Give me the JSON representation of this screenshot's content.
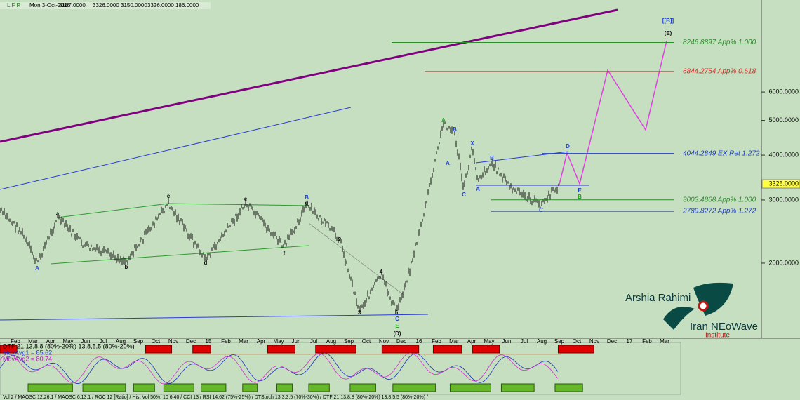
{
  "header": {
    "icons": "L F R",
    "items": [
      "Mon 3-Oct-2016",
      "3187.0000",
      "3326.0000",
      "3150.0000",
      "3326.0000",
      "186.0000"
    ]
  },
  "price_axis": {
    "scale": "log",
    "ylim": [
      1246,
      10830
    ],
    "yticks": [
      {
        "value": 2000,
        "label": "2000.0000"
      },
      {
        "value": 3000,
        "label": "3000.0000"
      },
      {
        "value": 4000,
        "label": "4000.0000"
      },
      {
        "value": 5000,
        "label": "5000.0000"
      },
      {
        "value": 6000,
        "label": "6000.0000"
      }
    ],
    "last_price": {
      "value": 3326,
      "label": "3326.0000"
    }
  },
  "levels": [
    {
      "value": 8246.8897,
      "label": "8246.8897 App% 1.000",
      "color": "#2e8b2e"
    },
    {
      "value": 6844.2754,
      "label": "6844.2754 App% 0.618",
      "color": "#d0302a"
    },
    {
      "value": 4044.2849,
      "label": "4044.2849 EX Ret 1.272",
      "color": "#2040c0"
    },
    {
      "value": 3003.4868,
      "label": "3003.4868 App% 1.000",
      "color": "#2e8b2e"
    },
    {
      "value": 2789.8272,
      "label": "2789.8272 App% 1.272",
      "color": "#2040c0"
    }
  ],
  "x_axis_labels": [
    "Feb",
    "Mar",
    "Apr",
    "May",
    "Jun",
    "Jul",
    "Aug",
    "Sep",
    "Oct",
    "Nov",
    "Dec",
    "15",
    "Feb",
    "Mar",
    "Apr",
    "May",
    "Jun",
    "Jul",
    "Aug",
    "Sep",
    "Oct",
    "Nov",
    "Dec",
    "16",
    "Feb",
    "Mar",
    "Apr",
    "May",
    "Jun",
    "Jul",
    "Aug",
    "Sep",
    "Oct",
    "Nov",
    "Dec",
    "17",
    "Feb",
    "Mar"
  ],
  "wave_labels": [
    {
      "text": "A",
      "color": "#1f3fd0"
    },
    {
      "text": "a",
      "color": "#111"
    },
    {
      "text": "b",
      "color": "#111"
    },
    {
      "text": "c",
      "color": "#111"
    },
    {
      "text": "d",
      "color": "#111"
    },
    {
      "text": "e",
      "color": "#111"
    },
    {
      "text": "f",
      "color": "#111"
    },
    {
      "text": "g",
      "color": "#111"
    },
    {
      "text": "B",
      "color": "#1f3fd0"
    },
    {
      "text": "2",
      "color": "#111"
    },
    {
      "text": "3",
      "color": "#111"
    },
    {
      "text": "4",
      "color": "#111"
    },
    {
      "text": "5",
      "color": "#111"
    },
    {
      "text": "C",
      "color": "#1f3fd0"
    },
    {
      "text": "E",
      "color": "#1a9a1a"
    },
    {
      "text": "(D)",
      "color": "#111"
    },
    {
      "text": "A",
      "color": "#1a9a1a"
    },
    {
      "text": "B",
      "color": "#1f3fd0"
    },
    {
      "text": "A",
      "color": "#1f3fd0"
    },
    {
      "text": "C",
      "color": "#1f3fd0"
    },
    {
      "text": "X",
      "color": "#1f3fd0"
    },
    {
      "text": "B",
      "color": "#1f3fd0"
    },
    {
      "text": "A",
      "color": "#1f3fd0"
    },
    {
      "text": "C",
      "color": "#1f3fd0"
    },
    {
      "text": "D",
      "color": "#1f3fd0"
    },
    {
      "text": "E",
      "color": "#1f3fd0"
    },
    {
      "text": "B",
      "color": "#1a9a1a"
    },
    {
      "text": "[[B]]",
      "color": "#1f3fd0"
    },
    {
      "text": "(E)",
      "color": "#111"
    }
  ],
  "indicator": {
    "title": "DTF 21,13,8,8 (80%-20%) 13,8,5,5 (80%-20%)",
    "ma1": "MovAvg1 = 85.62",
    "ma2": "MovAvg2 = 80.74"
  },
  "status_bar": "Vol 2 / MAOSC 12.26.1 / MAOSC 6.13.1 / ROC 12 [Ratio] / Hist Vol 50%, 10 6 40 / CCI 13 / RSI 14.62 (75%-25%) / DTStoch 13.3.3.5 (70%-30%) / DTF 21.13.8.8 (80%-20%) 13.8.5.5 (80%-20%) /",
  "logo": {
    "name": "Arshia Rahimi",
    "brand": "Iran NEoWave",
    "sub": "Institute"
  }
}
